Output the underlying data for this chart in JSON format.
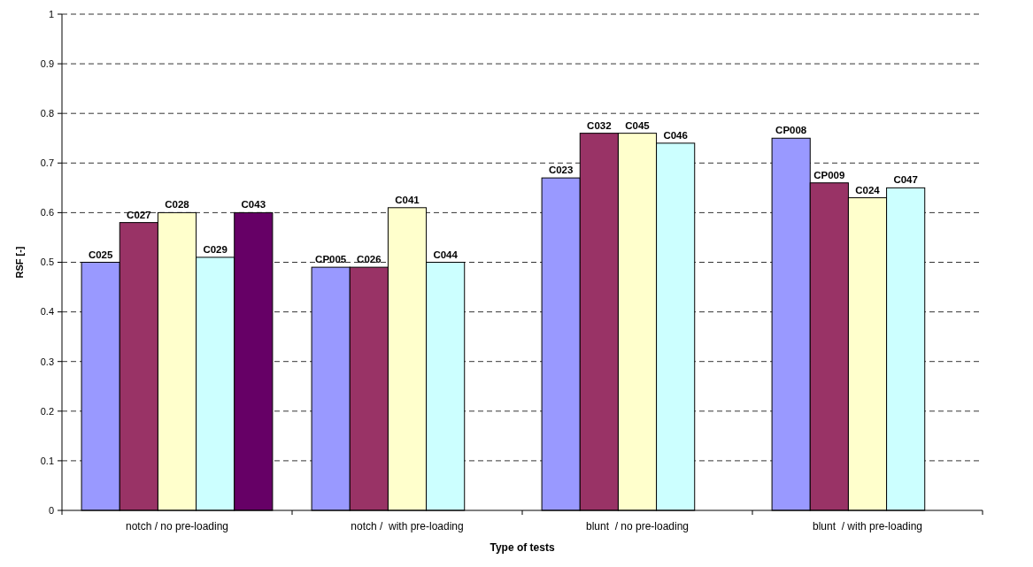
{
  "chart_data": {
    "type": "bar",
    "xlabel": "Type of tests",
    "ylabel": "RSF [-]",
    "categories": [
      "notch / no pre-loading",
      "notch /  with pre-loading",
      "blunt  / no pre-loading",
      "blunt  / with pre-loading"
    ],
    "series": [
      {
        "color": "#9999ff",
        "values": [
          0.5,
          0.49,
          0.67,
          0.75
        ],
        "value_labels": [
          "C025",
          "CP005",
          "C023",
          "CP008"
        ]
      },
      {
        "color": "#993366",
        "values": [
          0.58,
          0.49,
          0.76,
          0.66
        ],
        "value_labels": [
          "C027",
          "C026",
          "C032",
          "CP009"
        ]
      },
      {
        "color": "#ffffcc",
        "values": [
          0.6,
          0.61,
          0.76,
          0.63
        ],
        "value_labels": [
          "C028",
          "C041",
          "C045",
          "C024"
        ]
      },
      {
        "color": "#ccffff",
        "values": [
          0.51,
          0.5,
          0.74,
          0.65
        ],
        "value_labels": [
          "C029",
          "C044",
          "C046",
          "C047"
        ]
      },
      {
        "color": "#660066",
        "values": [
          0.6,
          null,
          null,
          null
        ],
        "value_labels": [
          "C043",
          null,
          null,
          null
        ]
      }
    ],
    "ylim": [
      0,
      1
    ],
    "yticks": [
      0,
      0.1,
      0.2,
      0.3,
      0.4,
      0.5,
      0.6,
      0.7,
      0.8,
      0.9,
      1
    ],
    "grid": "y"
  }
}
